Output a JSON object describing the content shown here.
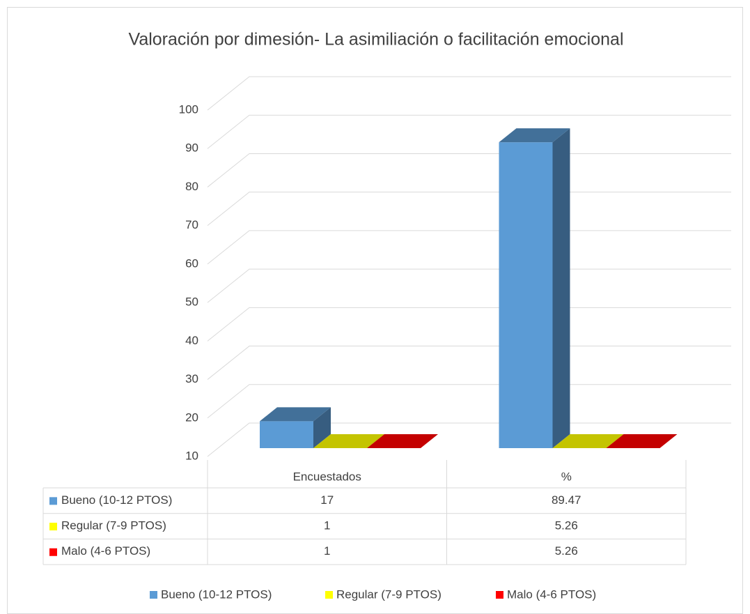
{
  "chart_data": {
    "type": "bar3d",
    "title": "Valoración por dimesión- La asimiliación o facilitación emocional",
    "categories": [
      "Encuestados",
      "%"
    ],
    "series": [
      {
        "name": "Bueno  (10-12 PTOS)",
        "color": "#5b9bd5",
        "values": [
          17,
          89.47
        ]
      },
      {
        "name": "Regular (7-9 PTOS)",
        "color": "#ffff00",
        "values": [
          1,
          5.26
        ]
      },
      {
        "name": "Malo (4-6 PTOS)",
        "color": "#ff0000",
        "values": [
          1,
          5.26
        ]
      }
    ],
    "ylim": [
      10,
      100
    ],
    "yticks": [
      10,
      20,
      30,
      40,
      50,
      60,
      70,
      80,
      90,
      100
    ],
    "grid": true,
    "data_table": true,
    "legend": "bottom"
  }
}
